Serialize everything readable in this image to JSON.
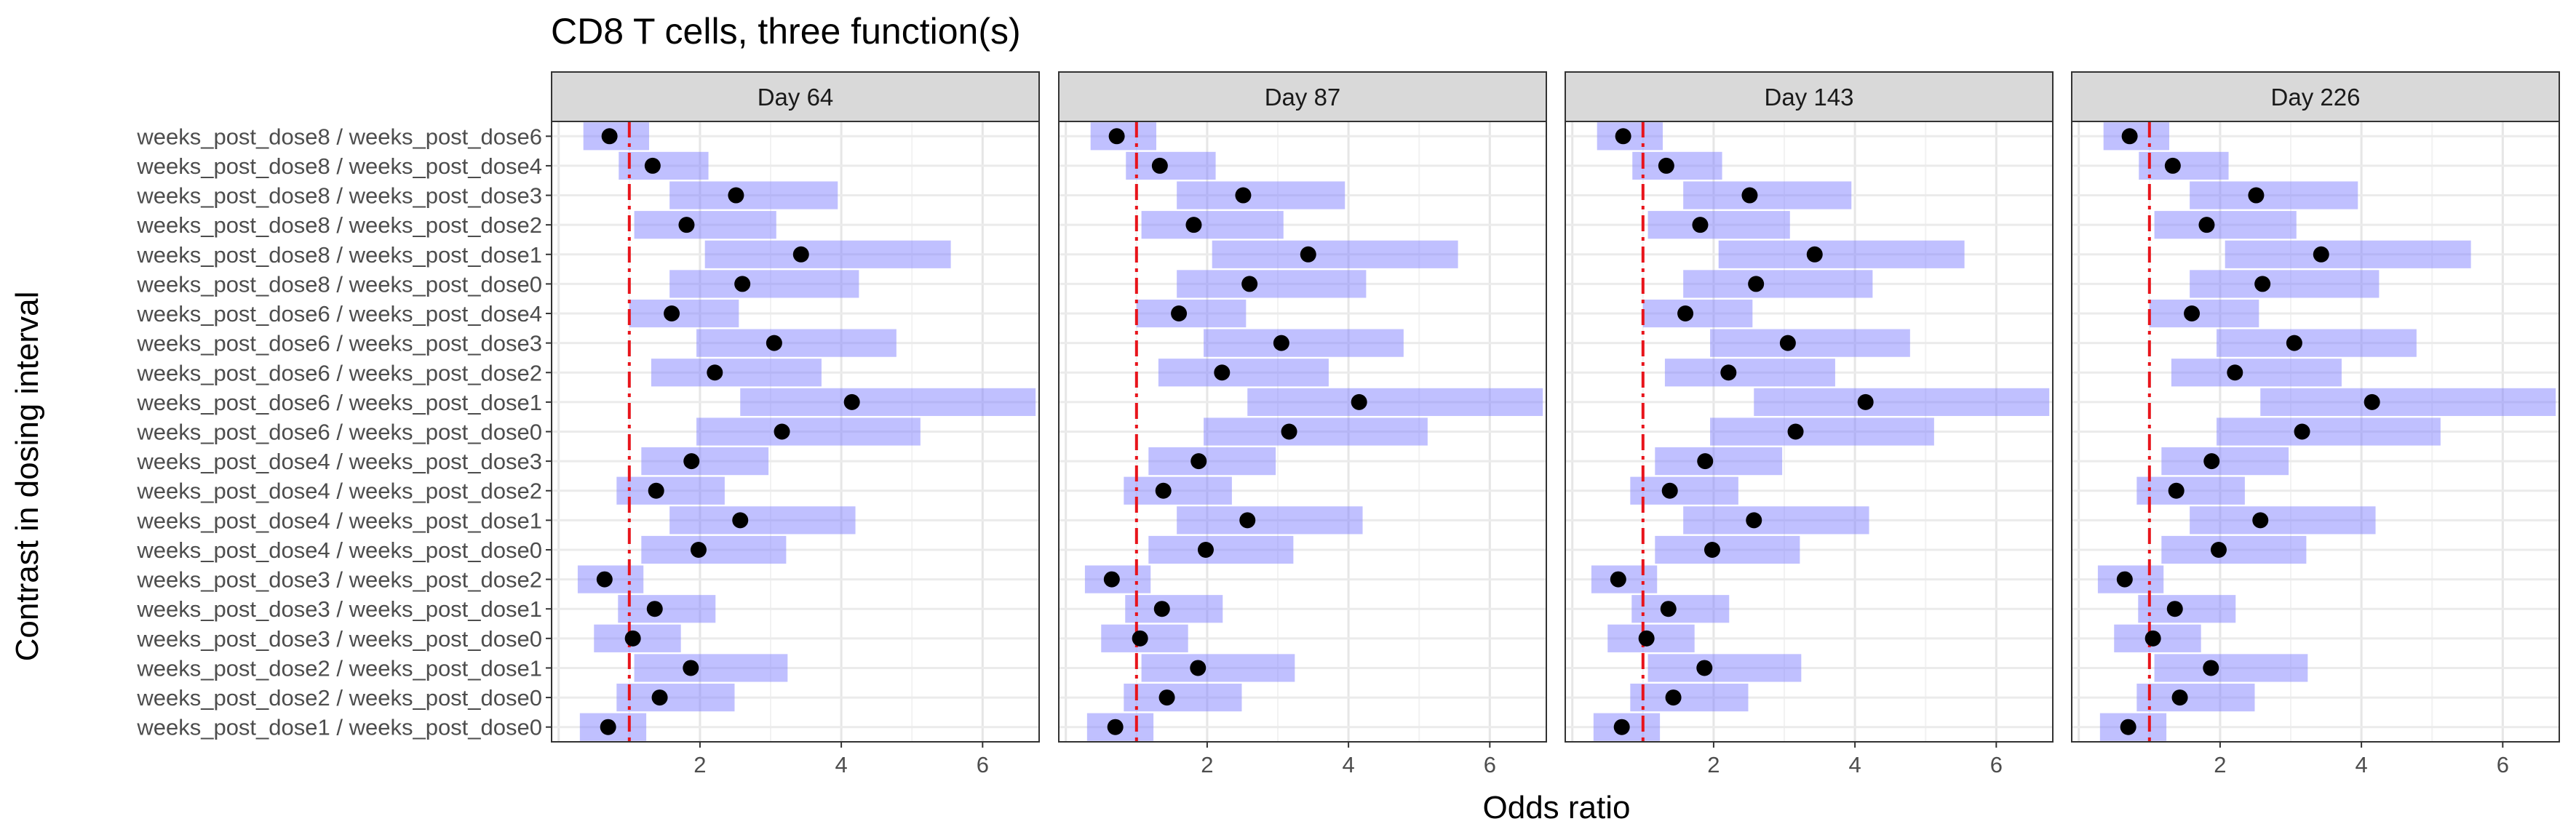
{
  "chart_data": {
    "type": "forest",
    "title": "CD8 T cells, three function(s)",
    "xlabel": "Odds ratio",
    "ylabel": "Contrast in dosing interval",
    "xlim": [
      -0.1,
      6.8
    ],
    "xticks": [
      2,
      4,
      6
    ],
    "reference_line": 1,
    "colors": {
      "interval": "#7b7bff",
      "point": "#000000",
      "reference": "#e8141b",
      "strip_fill": "#d9d9d9"
    },
    "categories": [
      "weeks_post_dose8 / weeks_post_dose6",
      "weeks_post_dose8 / weeks_post_dose4",
      "weeks_post_dose8 / weeks_post_dose3",
      "weeks_post_dose8 / weeks_post_dose2",
      "weeks_post_dose8 / weeks_post_dose1",
      "weeks_post_dose8 / weeks_post_dose0",
      "weeks_post_dose6 / weeks_post_dose4",
      "weeks_post_dose6 / weeks_post_dose3",
      "weeks_post_dose6 / weeks_post_dose2",
      "weeks_post_dose6 / weeks_post_dose1",
      "weeks_post_dose6 / weeks_post_dose0",
      "weeks_post_dose4 / weeks_post_dose3",
      "weeks_post_dose4 / weeks_post_dose2",
      "weeks_post_dose4 / weeks_post_dose1",
      "weeks_post_dose4 / weeks_post_dose0",
      "weeks_post_dose3 / weeks_post_dose2",
      "weeks_post_dose3 / weeks_post_dose1",
      "weeks_post_dose3 / weeks_post_dose0",
      "weeks_post_dose2 / weeks_post_dose1",
      "weeks_post_dose2 / weeks_post_dose0",
      "weeks_post_dose1 / weeks_post_dose0"
    ],
    "panels": [
      {
        "label": "Day 64",
        "estimate": [
          0.72,
          1.33,
          2.51,
          1.81,
          3.43,
          2.6,
          1.6,
          3.05,
          2.21,
          4.15,
          3.16,
          1.88,
          1.38,
          2.57,
          1.98,
          0.65,
          1.36,
          1.05,
          1.87,
          1.43,
          0.7
        ],
        "lower": [
          0.35,
          0.85,
          1.57,
          1.07,
          2.07,
          1.57,
          1.0,
          1.95,
          1.31,
          2.57,
          1.95,
          1.17,
          0.82,
          1.57,
          1.17,
          0.27,
          0.84,
          0.5,
          1.07,
          0.82,
          0.3
        ],
        "upper": [
          1.28,
          2.12,
          3.95,
          3.08,
          5.55,
          4.25,
          2.55,
          4.78,
          3.72,
          6.75,
          5.12,
          2.97,
          2.35,
          4.2,
          3.22,
          1.2,
          2.22,
          1.73,
          3.24,
          2.49,
          1.24
        ]
      },
      {
        "label": "Day 87",
        "estimate": [
          0.72,
          1.33,
          2.51,
          1.81,
          3.43,
          2.6,
          1.6,
          3.05,
          2.21,
          4.15,
          3.16,
          1.88,
          1.38,
          2.57,
          1.98,
          0.65,
          1.36,
          1.05,
          1.87,
          1.43,
          0.7
        ],
        "lower": [
          0.35,
          0.85,
          1.57,
          1.07,
          2.07,
          1.57,
          1.0,
          1.95,
          1.31,
          2.57,
          1.95,
          1.17,
          0.82,
          1.57,
          1.17,
          0.27,
          0.84,
          0.5,
          1.07,
          0.82,
          0.3
        ],
        "upper": [
          1.28,
          2.12,
          3.95,
          3.08,
          5.55,
          4.25,
          2.55,
          4.78,
          3.72,
          6.75,
          5.12,
          2.97,
          2.35,
          4.2,
          3.22,
          1.2,
          2.22,
          1.73,
          3.24,
          2.49,
          1.24
        ]
      },
      {
        "label": "Day 143",
        "estimate": [
          0.72,
          1.33,
          2.51,
          1.81,
          3.43,
          2.6,
          1.6,
          3.05,
          2.21,
          4.15,
          3.16,
          1.88,
          1.38,
          2.57,
          1.98,
          0.65,
          1.36,
          1.05,
          1.87,
          1.43,
          0.7
        ],
        "lower": [
          0.35,
          0.85,
          1.57,
          1.07,
          2.07,
          1.57,
          1.0,
          1.95,
          1.31,
          2.57,
          1.95,
          1.17,
          0.82,
          1.57,
          1.17,
          0.27,
          0.84,
          0.5,
          1.07,
          0.82,
          0.3
        ],
        "upper": [
          1.28,
          2.12,
          3.95,
          3.08,
          5.55,
          4.25,
          2.55,
          4.78,
          3.72,
          6.75,
          5.12,
          2.97,
          2.35,
          4.2,
          3.22,
          1.2,
          2.22,
          1.73,
          3.24,
          2.49,
          1.24
        ]
      },
      {
        "label": "Day 226",
        "estimate": [
          0.72,
          1.33,
          2.51,
          1.81,
          3.43,
          2.6,
          1.6,
          3.05,
          2.21,
          4.15,
          3.16,
          1.88,
          1.38,
          2.57,
          1.98,
          0.65,
          1.36,
          1.05,
          1.87,
          1.43,
          0.7
        ],
        "lower": [
          0.35,
          0.85,
          1.57,
          1.07,
          2.07,
          1.57,
          1.0,
          1.95,
          1.31,
          2.57,
          1.95,
          1.17,
          0.82,
          1.57,
          1.17,
          0.27,
          0.84,
          0.5,
          1.07,
          0.82,
          0.3
        ],
        "upper": [
          1.28,
          2.12,
          3.95,
          3.08,
          5.55,
          4.25,
          2.55,
          4.78,
          3.72,
          6.75,
          5.12,
          2.97,
          2.35,
          4.2,
          3.22,
          1.2,
          2.22,
          1.73,
          3.24,
          2.49,
          1.24
        ]
      }
    ]
  }
}
